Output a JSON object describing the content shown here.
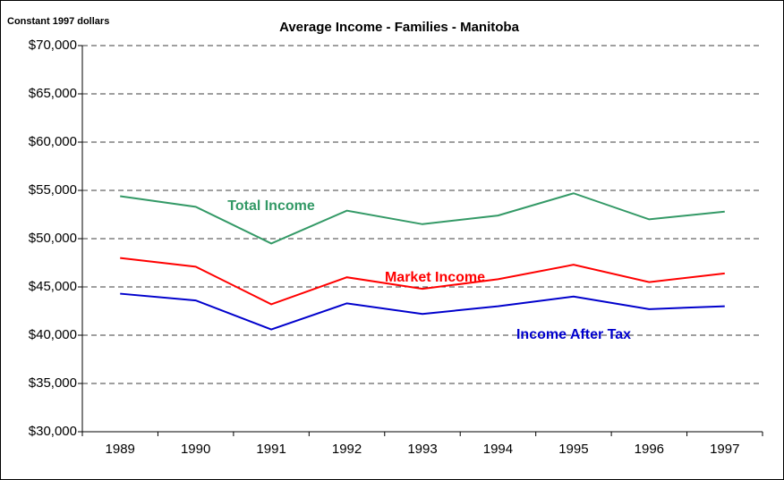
{
  "chart_data": {
    "type": "line",
    "title": "Average Income - Families - Manitoba",
    "y_label": "Constant 1997 dollars",
    "categories": [
      "1989",
      "1990",
      "1991",
      "1992",
      "1993",
      "1994",
      "1995",
      "1996",
      "1997"
    ],
    "series": [
      {
        "name": "Total Income",
        "color": "#339966",
        "values": [
          54400,
          53300,
          49500,
          52900,
          51500,
          52400,
          54700,
          52000,
          52800
        ]
      },
      {
        "name": "Market Income",
        "color": "#ff0000",
        "values": [
          48000,
          47100,
          43200,
          46000,
          44800,
          45800,
          47300,
          45500,
          46400
        ]
      },
      {
        "name": "Income After Tax",
        "color": "#0000cc",
        "values": [
          44300,
          43600,
          40600,
          43300,
          42200,
          43000,
          44000,
          42700,
          43000
        ]
      }
    ],
    "ylim": [
      30000,
      70000
    ],
    "yticks": [
      {
        "value": 30000,
        "label": "$30,000"
      },
      {
        "value": 35000,
        "label": "$35,000"
      },
      {
        "value": 40000,
        "label": "$40,000"
      },
      {
        "value": 45000,
        "label": "$45,000"
      },
      {
        "value": 50000,
        "label": "$50,000"
      },
      {
        "value": 55000,
        "label": "$55,000"
      },
      {
        "value": 60000,
        "label": "$60,000"
      },
      {
        "value": 65000,
        "label": "$65,000"
      },
      {
        "value": 70000,
        "label": "$70,000"
      }
    ],
    "grid": true
  }
}
